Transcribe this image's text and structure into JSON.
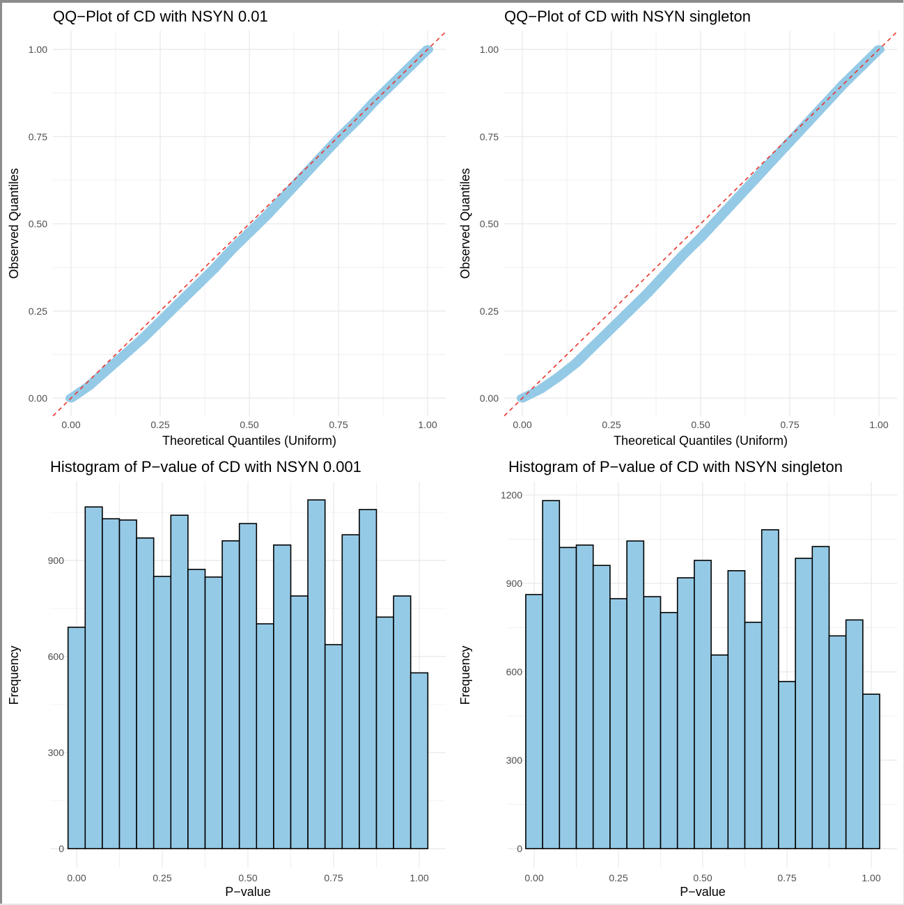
{
  "colors": {
    "point_fill": "#95cae6",
    "bar_fill": "#95cae6",
    "bar_stroke": "#000000",
    "ref_line": "#e8332a",
    "grid": "#ebebeb",
    "frame": "#8c8c8c"
  },
  "chart_data": [
    {
      "id": "qq-nsyn-001",
      "type": "scatter",
      "title": "QQ−Plot of CD with NSYN 0.01",
      "xlabel": "Theoretical Quantiles (Uniform)",
      "ylabel": "Observed Quantiles",
      "xlim": [
        0,
        1
      ],
      "ylim": [
        0,
        1
      ],
      "xticks": [
        "0.00",
        "0.25",
        "0.50",
        "0.75",
        "1.00"
      ],
      "yticks": [
        "0.00",
        "0.25",
        "0.50",
        "0.75",
        "1.00"
      ],
      "grid": true,
      "reference_line": {
        "slope": 1,
        "intercept": 0,
        "style": "dashed"
      },
      "points": {
        "x": [
          0,
          0.05,
          0.1,
          0.15,
          0.2,
          0.25,
          0.3,
          0.35,
          0.4,
          0.45,
          0.5,
          0.55,
          0.6,
          0.65,
          0.7,
          0.75,
          0.8,
          0.85,
          0.9,
          0.95,
          1.0
        ],
        "y": [
          0,
          0.035,
          0.08,
          0.125,
          0.17,
          0.22,
          0.27,
          0.32,
          0.37,
          0.425,
          0.475,
          0.525,
          0.58,
          0.635,
          0.69,
          0.745,
          0.795,
          0.85,
          0.9,
          0.95,
          1.0
        ]
      }
    },
    {
      "id": "qq-nsyn-singleton",
      "type": "scatter",
      "title": "QQ−Plot of CD with NSYN singleton",
      "xlabel": "Theoretical Quantiles (Uniform)",
      "ylabel": "Observed Quantiles",
      "xlim": [
        0,
        1
      ],
      "ylim": [
        0,
        1
      ],
      "xticks": [
        "0.00",
        "0.25",
        "0.50",
        "0.75",
        "1.00"
      ],
      "yticks": [
        "0.00",
        "0.25",
        "0.50",
        "0.75",
        "1.00"
      ],
      "grid": true,
      "reference_line": {
        "slope": 1,
        "intercept": 0,
        "style": "dashed"
      },
      "points": {
        "x": [
          0,
          0.05,
          0.1,
          0.15,
          0.2,
          0.25,
          0.3,
          0.35,
          0.4,
          0.45,
          0.5,
          0.55,
          0.6,
          0.65,
          0.7,
          0.75,
          0.8,
          0.85,
          0.9,
          0.95,
          1.0
        ],
        "y": [
          0,
          0.025,
          0.06,
          0.1,
          0.15,
          0.2,
          0.25,
          0.3,
          0.355,
          0.41,
          0.46,
          0.515,
          0.57,
          0.625,
          0.68,
          0.735,
          0.79,
          0.845,
          0.9,
          0.95,
          1.0
        ]
      }
    },
    {
      "id": "hist-nsyn-0001",
      "type": "bar",
      "title": "Histogram of P−value of CD with NSYN 0.001",
      "xlabel": "P−value",
      "ylabel": "Frequency",
      "binwidth": 0.05,
      "bin_centers": [
        0,
        0.05,
        0.1,
        0.15,
        0.2,
        0.25,
        0.3,
        0.35,
        0.4,
        0.45,
        0.5,
        0.55,
        0.6,
        0.65,
        0.7,
        0.75,
        0.8,
        0.85,
        0.9,
        0.95,
        1.0
      ],
      "values": [
        691,
        1067,
        1030,
        1026,
        970,
        850,
        1041,
        872,
        848,
        961,
        1015,
        702,
        948,
        789,
        1089,
        637,
        980,
        1059,
        723,
        789,
        549
      ],
      "xlim": [
        -0.05,
        1.05
      ],
      "ylim": [
        0,
        1130
      ],
      "xticks": [
        "0.00",
        "0.25",
        "0.50",
        "0.75",
        "1.00"
      ],
      "yticks": [
        "0",
        "300",
        "600",
        "900"
      ],
      "grid": true
    },
    {
      "id": "hist-nsyn-singleton",
      "type": "bar",
      "title": "Histogram of P−value of CD with NSYN singleton",
      "xlabel": "P−value",
      "ylabel": "Frequency",
      "binwidth": 0.05,
      "bin_centers": [
        0,
        0.05,
        0.1,
        0.15,
        0.2,
        0.25,
        0.3,
        0.35,
        0.4,
        0.45,
        0.5,
        0.55,
        0.6,
        0.65,
        0.7,
        0.75,
        0.8,
        0.85,
        0.9,
        0.95,
        1.0
      ],
      "values": [
        862,
        1181,
        1022,
        1030,
        961,
        848,
        1044,
        855,
        801,
        919,
        978,
        657,
        943,
        768,
        1082,
        567,
        985,
        1025,
        722,
        776,
        524
      ],
      "xlim": [
        -0.05,
        1.05
      ],
      "ylim": [
        0,
        1240
      ],
      "xticks": [
        "0.00",
        "0.25",
        "0.50",
        "0.75",
        "1.00"
      ],
      "yticks": [
        "0",
        "300",
        "600",
        "900",
        "1200"
      ],
      "grid": true
    }
  ]
}
